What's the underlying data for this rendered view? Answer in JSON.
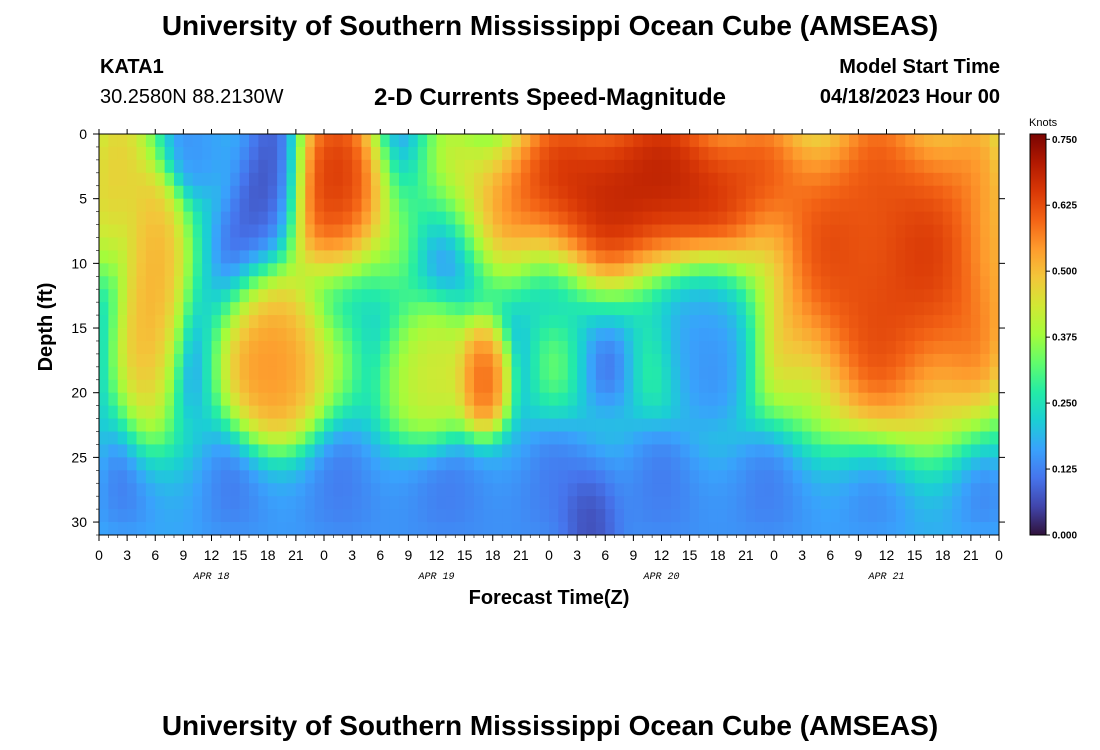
{
  "header": {
    "title": "University of Southern Mississippi Ocean Cube (AMSEAS)",
    "station_id": "KATA1",
    "station_coords": "30.2580N  88.2130W",
    "plot_title": "2-D Currents Speed-Magnitude",
    "model_start_label": "Model Start Time",
    "model_start_value": "04/18/2023 Hour 00"
  },
  "footer": {
    "title": "University of Southern Mississippi Ocean Cube (AMSEAS)"
  },
  "chart_data": {
    "type": "heatmap",
    "title": "2-D Currents Speed-Magnitude",
    "xlabel": "Forecast Time(Z)",
    "ylabel": "Depth (ft)",
    "x_hours_range": [
      0,
      96
    ],
    "ylim": [
      0,
      31
    ],
    "y_inverted": true,
    "x_tick_labels": [
      "0",
      "3",
      "6",
      "9",
      "12",
      "15",
      "18",
      "21",
      "0",
      "3",
      "6",
      "9",
      "12",
      "15",
      "18",
      "21",
      "0",
      "3",
      "6",
      "9",
      "12",
      "15",
      "18",
      "21",
      "0",
      "3",
      "6",
      "9",
      "12",
      "15",
      "18",
      "21",
      "0"
    ],
    "y_ticks": [
      0,
      5,
      10,
      15,
      20,
      25,
      30
    ],
    "date_labels": [
      {
        "label": "APR 18",
        "hour": 12
      },
      {
        "label": "APR 19",
        "hour": 36
      },
      {
        "label": "APR 20",
        "hour": 60
      },
      {
        "label": "APR 21",
        "hour": 84
      }
    ],
    "colorbar": {
      "title": "Knots",
      "range": [
        0,
        0.76
      ],
      "ticks": [
        "0.000",
        "0.125",
        "0.250",
        "0.375",
        "0.500",
        "0.625",
        "0.750"
      ],
      "stops": [
        "#30123b",
        "#4145ab",
        "#4675ed",
        "#39a2fc",
        "#1bcfd4",
        "#24eca6",
        "#61fc6c",
        "#a4fc3b",
        "#d1e834",
        "#f3c63a",
        "#fe9b2d",
        "#f36315",
        "#d93806",
        "#b11901",
        "#7a0402"
      ]
    },
    "speed_bands_knots": [
      {
        "hours": [
          0,
          3
        ],
        "depth_ft": [
          0,
          8
        ],
        "speed": 0.5
      },
      {
        "hours": [
          4,
          7
        ],
        "depth_ft": [
          3,
          20
        ],
        "speed": 0.55
      },
      {
        "hours": [
          8,
          15
        ],
        "depth_ft": [
          0,
          2
        ],
        "speed": 0.15
      },
      {
        "hours": [
          16,
          20
        ],
        "depth_ft": [
          0,
          7
        ],
        "speed": 0.05
      },
      {
        "hours": [
          16,
          22
        ],
        "depth_ft": [
          14,
          22
        ],
        "speed": 0.6
      },
      {
        "hours": [
          22,
          28
        ],
        "depth_ft": [
          0,
          8
        ],
        "speed": 0.7
      },
      {
        "hours": [
          32,
          38
        ],
        "depth_ft": [
          16,
          22
        ],
        "speed": 0.45
      },
      {
        "hours": [
          40,
          42
        ],
        "depth_ft": [
          17,
          21
        ],
        "speed": 0.65
      },
      {
        "hours": [
          44,
          72
        ],
        "depth_ft": [
          0,
          8
        ],
        "speed": 0.75
      },
      {
        "hours": [
          51,
          54
        ],
        "depth_ft": [
          28,
          31
        ],
        "speed": 0.0
      },
      {
        "hours": [
          62,
          68
        ],
        "depth_ft": [
          12,
          20
        ],
        "speed": 0.15
      },
      {
        "hours": [
          74,
          96
        ],
        "depth_ft": [
          0,
          20
        ],
        "speed": 0.7
      },
      {
        "hours": [
          0,
          96
        ],
        "depth_ft": [
          26,
          31
        ],
        "speed": 0.12
      }
    ]
  }
}
